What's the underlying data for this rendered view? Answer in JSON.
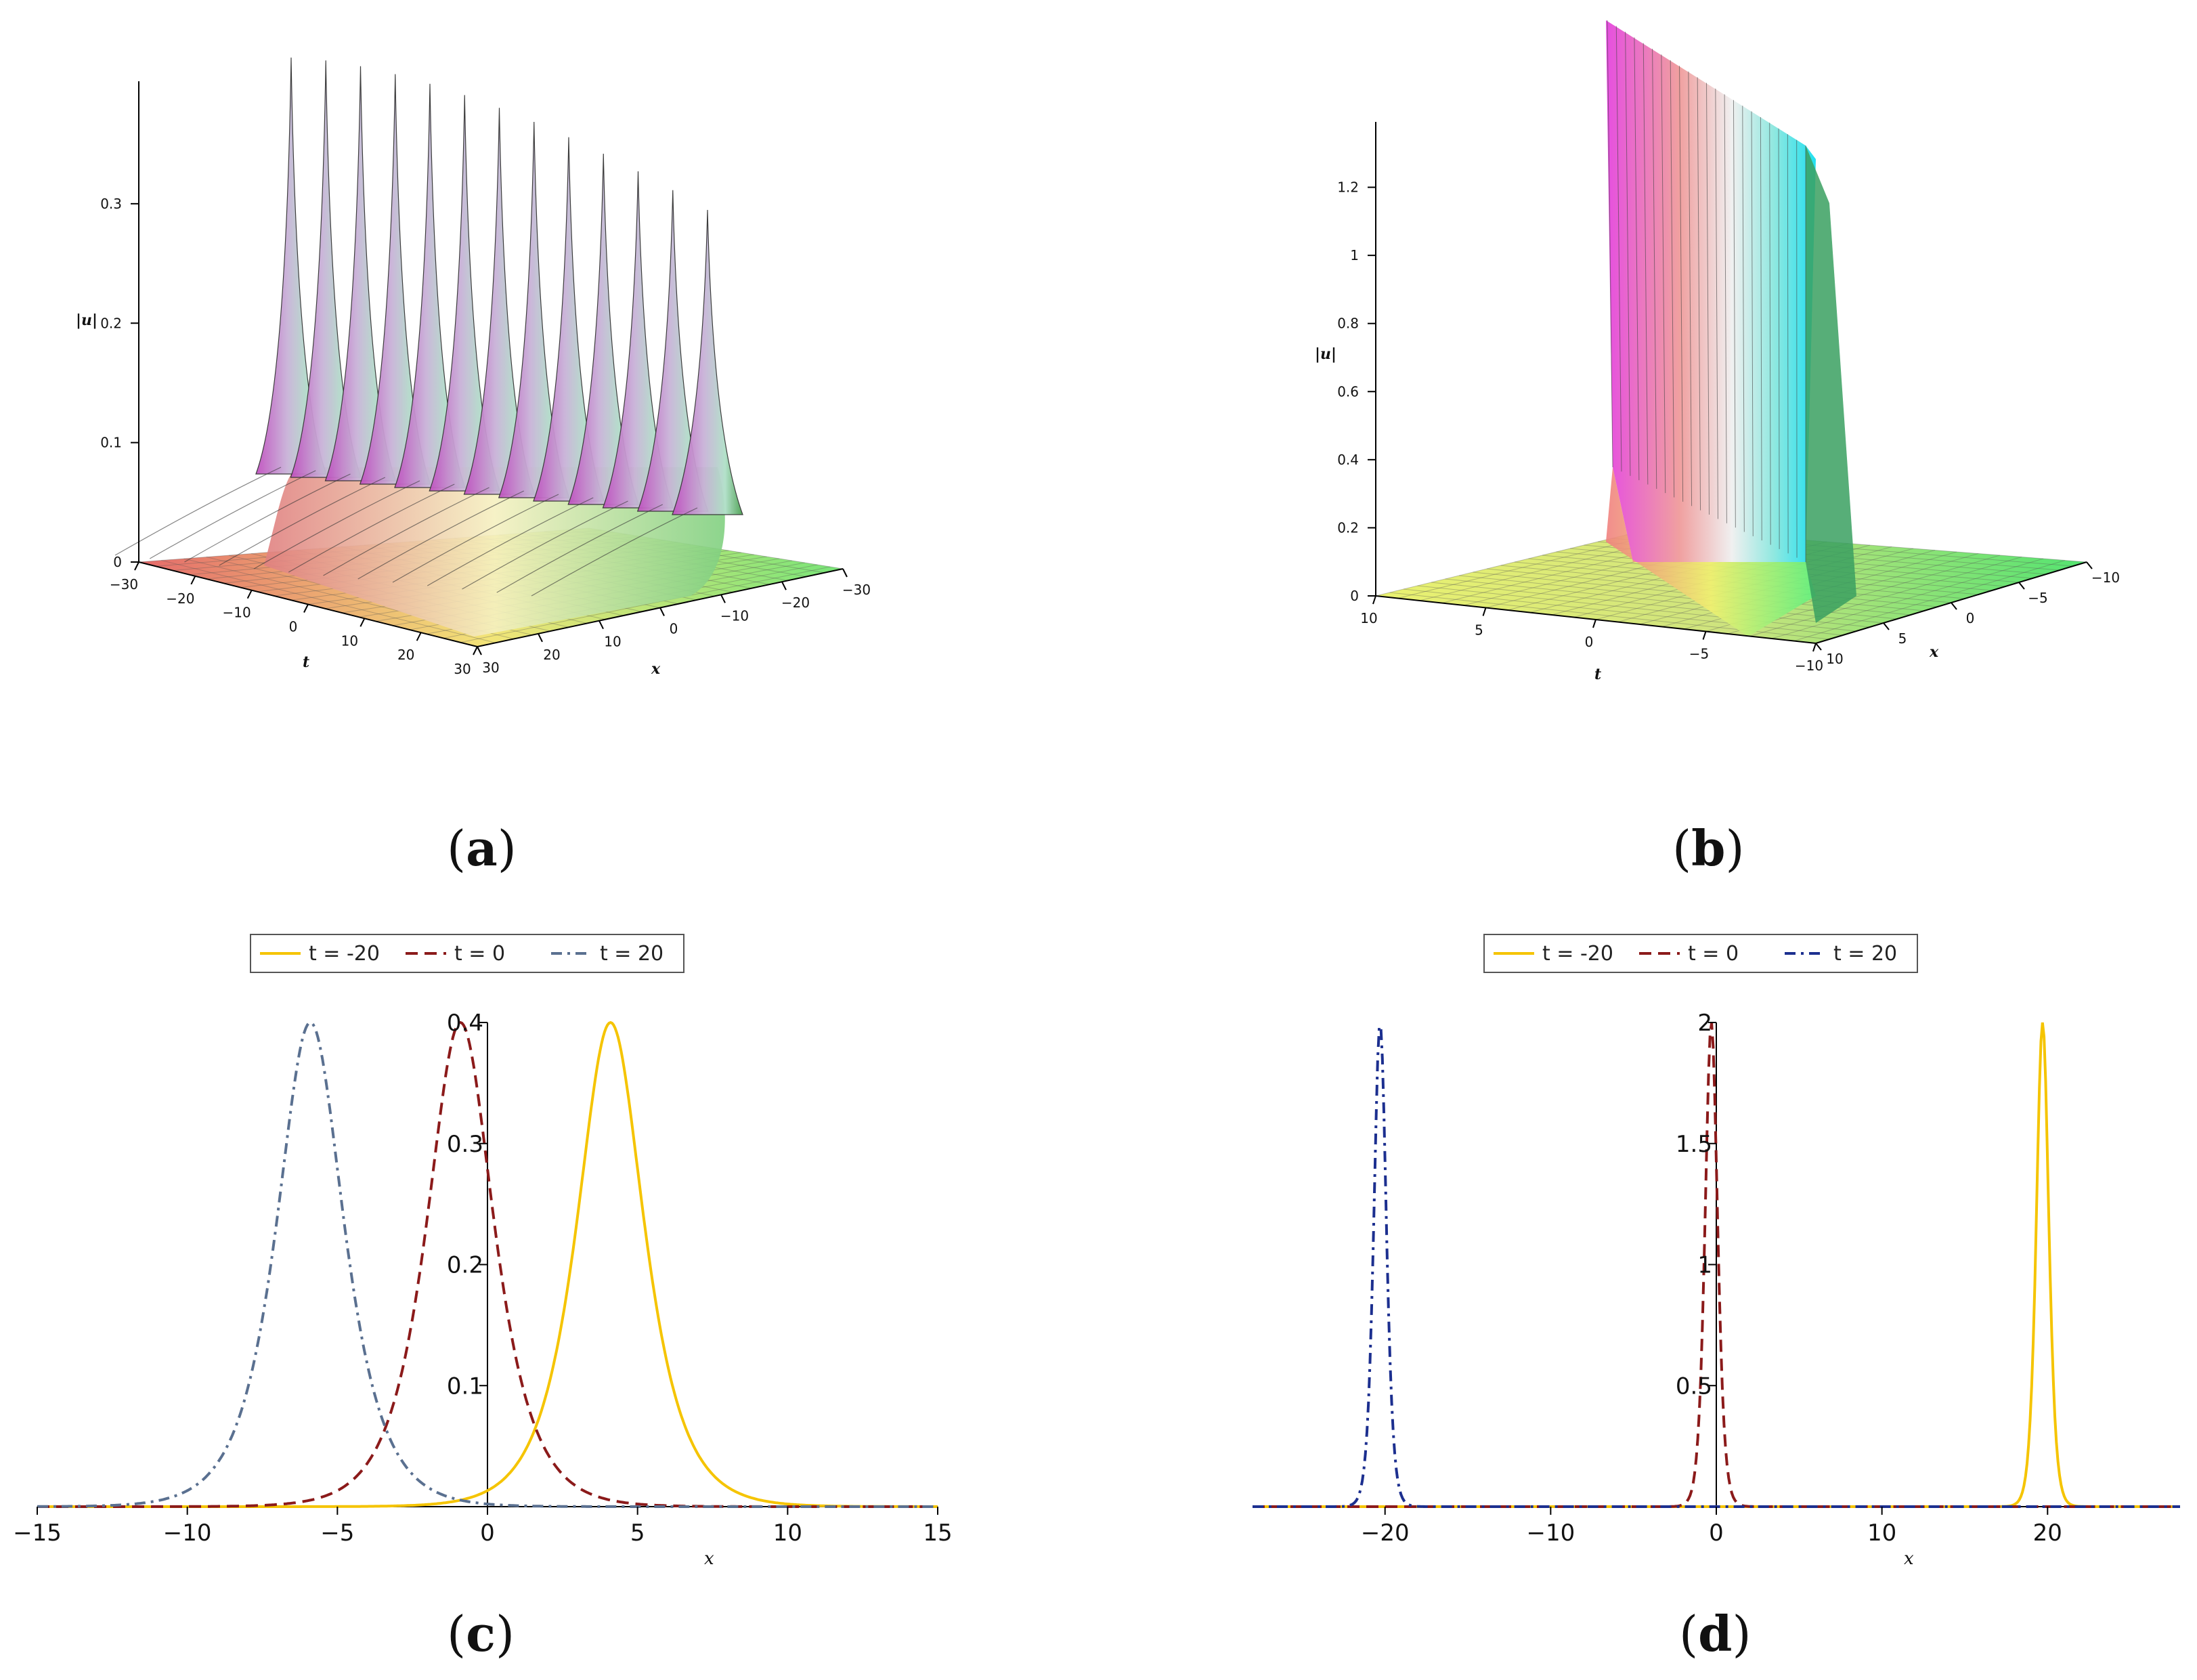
{
  "captions": {
    "a": "a",
    "b": "b",
    "c": "c",
    "d": "d"
  },
  "chart_data": [
    {
      "id": "a",
      "type": "surface3d",
      "zlabel": "|u|",
      "xlabel": "x",
      "ylabel": "t",
      "z_ticks": [
        "0",
        "0.1",
        "0.2",
        "0.3"
      ],
      "t_ticks": [
        "−30",
        "−20",
        "−10",
        "0",
        "10",
        "20",
        "30"
      ],
      "x_ticks": [
        "30",
        "20",
        "10",
        "0",
        "−10",
        "−20",
        "−30"
      ],
      "zlim": [
        0,
        0.4
      ],
      "peak_amplitude": 0.4
    },
    {
      "id": "b",
      "type": "surface3d",
      "zlabel": "|u|",
      "xlabel": "x",
      "ylabel": "t",
      "z_ticks": [
        "0",
        "0.2",
        "0.4",
        "0.6",
        "0.8",
        "1",
        "1.2"
      ],
      "t_ticks": [
        "10",
        "5",
        "0",
        "−5",
        "−10"
      ],
      "x_ticks": [
        "−10",
        "−5",
        "0",
        "5",
        "10"
      ],
      "zlim": [
        0,
        1.4
      ],
      "peak_amplitude": 1.4
    },
    {
      "id": "c",
      "type": "line",
      "xlabel": "x",
      "xlim": [
        -15,
        15
      ],
      "ylim": [
        0,
        0.4
      ],
      "x_ticks": [
        "−15",
        "−10",
        "−5",
        "0",
        "5",
        "10",
        "15"
      ],
      "x_tick_values": [
        -15,
        -10,
        -5,
        0,
        5,
        10,
        15
      ],
      "y_ticks": [
        "0.1",
        "0.2",
        "0.3",
        "0.4"
      ],
      "y_tick_values": [
        0.1,
        0.2,
        0.3,
        0.4
      ],
      "legend": [
        {
          "label": "t = -20",
          "color": "#f5c400",
          "dash": "solid"
        },
        {
          "label": "t = 0",
          "color": "#8b1a1a",
          "dash": "dash"
        },
        {
          "label": "t = 20",
          "color": "#5a7090",
          "dash": "dashdot"
        }
      ],
      "series": [
        {
          "name": "t = -20",
          "shape": "sech",
          "center": 4.1,
          "amplitude": 0.4,
          "width": 1.0
        },
        {
          "name": "t = 0",
          "shape": "sech",
          "center": -0.9,
          "amplitude": 0.4,
          "width": 1.0
        },
        {
          "name": "t = 20",
          "shape": "sech",
          "center": -5.9,
          "amplitude": 0.4,
          "width": 1.0
        }
      ]
    },
    {
      "id": "d",
      "type": "line",
      "xlabel": "x",
      "xlim": [
        -28,
        28
      ],
      "ylim": [
        0,
        2
      ],
      "x_ticks": [
        "−20",
        "−10",
        "0",
        "10",
        "20"
      ],
      "x_tick_values": [
        -20,
        -10,
        0,
        10,
        20
      ],
      "y_ticks": [
        "0.5",
        "1",
        "1.5",
        "2"
      ],
      "y_tick_values": [
        0.5,
        1,
        1.5,
        2
      ],
      "legend": [
        {
          "label": "t = -20",
          "color": "#f5c400",
          "dash": "solid"
        },
        {
          "label": "t = 0",
          "color": "#8b1a1a",
          "dash": "dash"
        },
        {
          "label": "t = 20",
          "color": "#1c2f8f",
          "dash": "dashdot"
        }
      ],
      "series": [
        {
          "name": "t = -20",
          "shape": "sech2",
          "center": 19.7,
          "amplitude": 2,
          "width": 0.5
        },
        {
          "name": "t = 0",
          "shape": "sech2",
          "center": -0.3,
          "amplitude": 2,
          "width": 0.5
        },
        {
          "name": "t = 20",
          "shape": "sech2",
          "center": -20.3,
          "amplitude": 2,
          "width": 0.5
        }
      ]
    }
  ]
}
